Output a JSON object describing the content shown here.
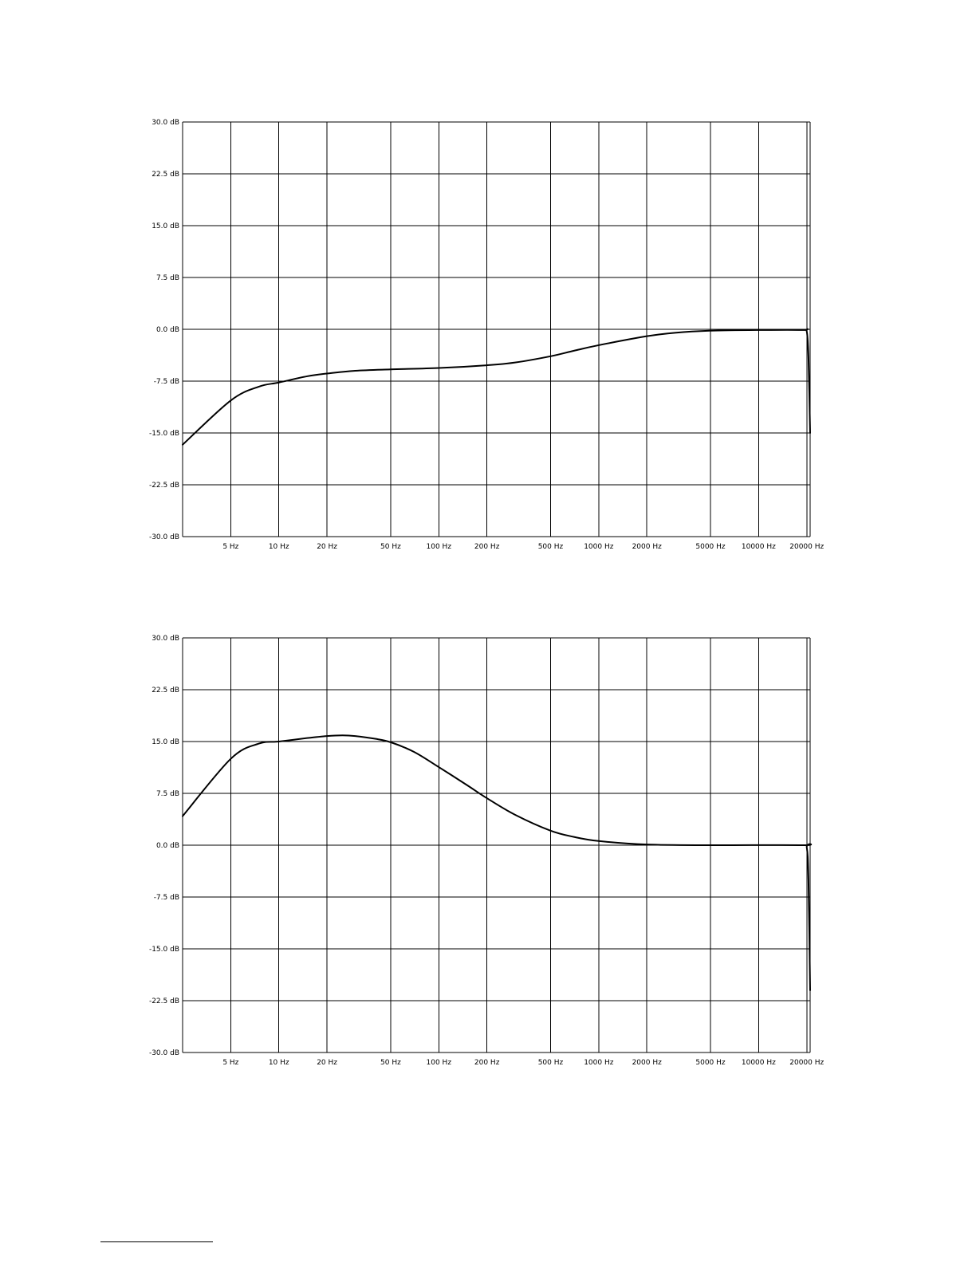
{
  "chart_data": [
    {
      "type": "line",
      "title": "",
      "xlabel": "",
      "ylabel": "",
      "xscale": "log",
      "xlim": [
        2.5,
        21000
      ],
      "ylim": [
        -30,
        30
      ],
      "grid": true,
      "x_ticks": [
        5,
        10,
        20,
        50,
        100,
        200,
        500,
        1000,
        2000,
        5000,
        10000,
        20000
      ],
      "x_tick_labels": [
        "5 Hz",
        "10 Hz",
        "20 Hz",
        "50 Hz",
        "100 Hz",
        "200 Hz",
        "500 Hz",
        "1000 Hz",
        "2000 Hz",
        "5000 Hz",
        "10000 Hz",
        "20000 Hz"
      ],
      "y_ticks": [
        30,
        22.5,
        15,
        7.5,
        0,
        -7.5,
        -15,
        -22.5,
        -30
      ],
      "y_tick_labels": [
        "30.0 dB",
        "22.5 dB",
        "15.0 dB",
        "7.5 dB",
        "0.0 dB",
        "-7.5 dB",
        "-15.0 dB",
        "-22.5 dB",
        "-30.0 dB"
      ],
      "series": [
        {
          "color": "#000000",
          "points": [
            [
              2.5,
              -16.7
            ],
            [
              5,
              -10.3
            ],
            [
              7.5,
              -8.3
            ],
            [
              10,
              -7.7
            ],
            [
              15,
              -6.8
            ],
            [
              20,
              -6.4
            ],
            [
              30,
              -6.0
            ],
            [
              50,
              -5.8
            ],
            [
              100,
              -5.6
            ],
            [
              200,
              -5.2
            ],
            [
              300,
              -4.8
            ],
            [
              500,
              -3.9
            ],
            [
              700,
              -3.1
            ],
            [
              1000,
              -2.3
            ],
            [
              2000,
              -1.0
            ],
            [
              3000,
              -0.5
            ],
            [
              5000,
              -0.2
            ],
            [
              10000,
              -0.1
            ],
            [
              19000,
              -0.1
            ],
            [
              20000,
              -0.3
            ],
            [
              20500,
              -4.0
            ],
            [
              21000,
              -15.0
            ]
          ]
        }
      ]
    },
    {
      "type": "line",
      "title": "",
      "xlabel": "",
      "ylabel": "",
      "xscale": "log",
      "xlim": [
        2.5,
        21000
      ],
      "ylim": [
        -30,
        30
      ],
      "grid": true,
      "x_ticks": [
        5,
        10,
        20,
        50,
        100,
        200,
        500,
        1000,
        2000,
        5000,
        10000,
        20000
      ],
      "x_tick_labels": [
        "5 Hz",
        "10 Hz",
        "20 Hz",
        "50 Hz",
        "100 Hz",
        "200 Hz",
        "500 Hz",
        "1000 Hz",
        "2000 Hz",
        "5000 Hz",
        "10000 Hz",
        "20000 Hz"
      ],
      "y_ticks": [
        30,
        22.5,
        15,
        7.5,
        0,
        -7.5,
        -15,
        -22.5,
        -30
      ],
      "y_tick_labels": [
        "30.0 dB",
        "22.5 dB",
        "15.0 dB",
        "7.5 dB",
        "0.0 dB",
        "-7.5 dB",
        "-15.0 dB",
        "-22.5 dB",
        "-30.0 dB"
      ],
      "series": [
        {
          "color": "#000000",
          "points": [
            [
              2.5,
              4.2
            ],
            [
              5,
              12.5
            ],
            [
              7.5,
              14.7
            ],
            [
              10,
              15.0
            ],
            [
              15,
              15.5
            ],
            [
              20,
              15.8
            ],
            [
              25,
              15.9
            ],
            [
              30,
              15.8
            ],
            [
              40,
              15.4
            ],
            [
              50,
              14.9
            ],
            [
              70,
              13.5
            ],
            [
              100,
              11.3
            ],
            [
              150,
              8.7
            ],
            [
              200,
              6.8
            ],
            [
              300,
              4.4
            ],
            [
              500,
              2.1
            ],
            [
              700,
              1.2
            ],
            [
              1000,
              0.6
            ],
            [
              2000,
              0.1
            ],
            [
              5000,
              0.0
            ],
            [
              19000,
              0.0
            ],
            [
              20000,
              -0.3
            ],
            [
              20500,
              -5.0
            ],
            [
              21000,
              -21.0
            ]
          ]
        }
      ]
    }
  ]
}
